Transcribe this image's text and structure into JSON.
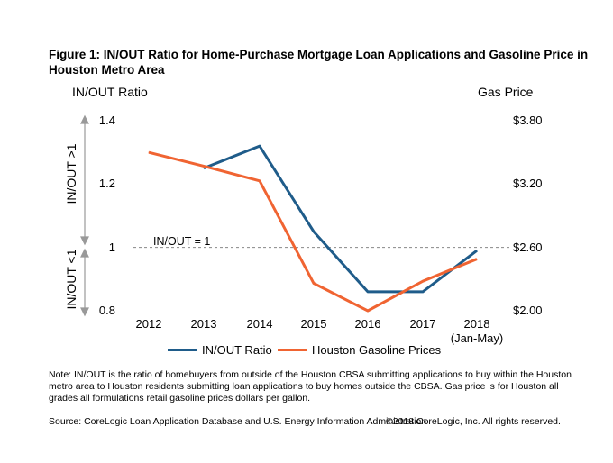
{
  "figure": {
    "title": "Figure 1: IN/OUT Ratio for Home-Purchase Mortgage Loan Applications and Gasoline Price in Houston Metro Area",
    "note": "Note: IN/OUT is the ratio of homebuyers from outside of the Houston CBSA submitting applications to buy within the Houston metro area to Houston residents submitting loan applications to buy homes outside the CBSA. Gas price is for Houston all grades all formulations retail gasoline prices dollars per gallon.",
    "source": "Source: CoreLogic Loan Application Database and U.S. Energy Information Administration",
    "copyright": "©2018 CoreLogic, Inc. All rights reserved."
  },
  "chart_data": {
    "type": "line",
    "title": "Figure 1: IN/OUT Ratio for Home-Purchase Mortgage Loan Applications and Gasoline Price in Houston Metro Area",
    "ylabel_left": "IN/OUT Ratio",
    "ylabel_right": "Gas Price",
    "categories": [
      "2012",
      "2013",
      "2014",
      "2015",
      "2016",
      "2017",
      "2018\n(Jan-May)"
    ],
    "x_tick_labels": [
      {
        "line1": "2012",
        "line2": ""
      },
      {
        "line1": "2013",
        "line2": ""
      },
      {
        "line1": "2014",
        "line2": ""
      },
      {
        "line1": "2015",
        "line2": ""
      },
      {
        "line1": "2016",
        "line2": ""
      },
      {
        "line1": "2017",
        "line2": ""
      },
      {
        "line1": "2018",
        "line2": "(Jan-May)"
      }
    ],
    "ylim_left": [
      0.8,
      1.4
    ],
    "yticks_left": [
      "0.8",
      "1",
      "1.2",
      "1.4"
    ],
    "ylim_right": [
      2.0,
      3.8
    ],
    "yticks_right": [
      "$2.00",
      "$2.60",
      "$3.20",
      "$3.80"
    ],
    "series": [
      {
        "name": "IN/OUT Ratio",
        "axis": "left",
        "color": "#1f5c8a",
        "values": [
          null,
          1.25,
          1.32,
          1.05,
          0.86,
          0.86,
          0.99
        ]
      },
      {
        "name": "Houston Gasoline Prices",
        "axis": "right",
        "color": "#f06432",
        "values": [
          3.5,
          3.37,
          3.23,
          2.26,
          2.0,
          2.28,
          2.49
        ]
      }
    ],
    "reference_line": {
      "value": 1.0,
      "label": "IN/OUT = 1",
      "color": "#888888"
    },
    "side_annotations": {
      "upper": "IN/OUT >1",
      "lower": "IN/OUT <1"
    },
    "grid": false,
    "legend_position": "bottom"
  }
}
